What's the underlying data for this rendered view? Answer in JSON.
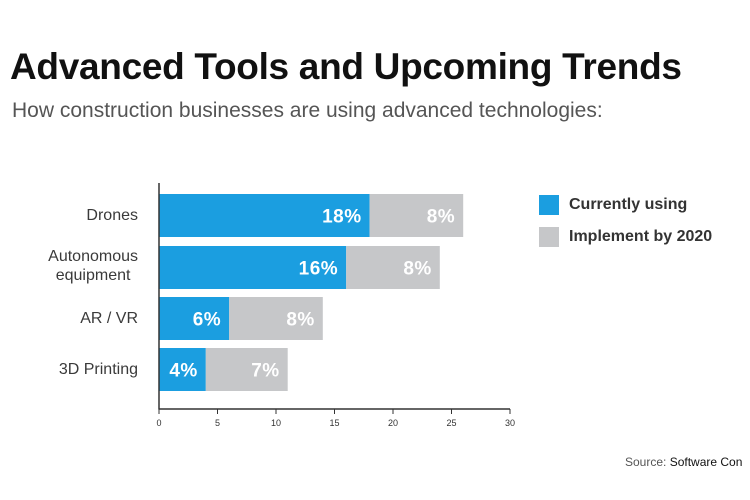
{
  "chart_data": {
    "type": "bar",
    "orientation": "horizontal",
    "stacked": true,
    "title": "Advanced Tools and Upcoming Trends",
    "subtitle": "How construction businesses are using advanced technologies:",
    "categories": [
      "Drones",
      "Autonomous\nequipment",
      "AR / VR",
      "3D Printing"
    ],
    "series": [
      {
        "name": "Currently using",
        "color": "#1b9ee0",
        "values": [
          18,
          16,
          6,
          4
        ],
        "labels": [
          "18%",
          "16%",
          "6%",
          "4%"
        ]
      },
      {
        "name": "Implement by 2020",
        "color": "#c6c7c9",
        "values": [
          8,
          8,
          8,
          7
        ],
        "labels": [
          "8%",
          "8%",
          "8%",
          "7%"
        ]
      }
    ],
    "xlim": [
      0,
      30
    ],
    "xticks": [
      0,
      5,
      10,
      15,
      20,
      25,
      30
    ],
    "grid": false,
    "legend": "right"
  },
  "source": {
    "prefix": "Source: ",
    "name": "Software Con"
  }
}
